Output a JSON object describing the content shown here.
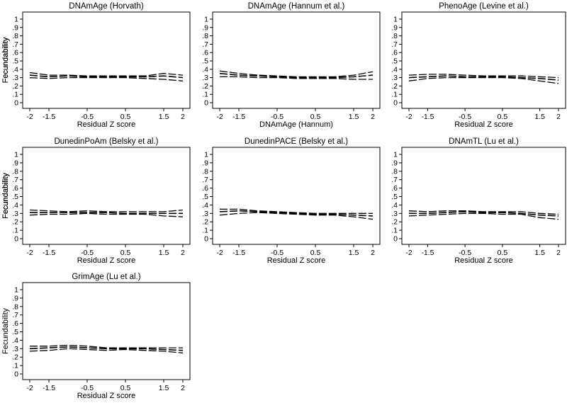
{
  "chart_data": [
    {
      "type": "line",
      "title": "DNAmAge (Horvath)",
      "xlabel": "Residual Z score",
      "ylabel": "Fecundability",
      "xlim": [
        -2,
        2
      ],
      "ylim": [
        0,
        1
      ],
      "xticks": [
        -2,
        -1.5,
        -0.5,
        0.5,
        1.5,
        2
      ],
      "xtick_labels": [
        "-2",
        "-1.5",
        "-0.5",
        "0.5",
        "1.5",
        "2"
      ],
      "yticks": [
        0,
        0.1,
        0.2,
        0.3,
        0.4,
        0.5,
        0.6,
        0.7,
        0.8,
        0.9,
        1
      ],
      "ytick_labels": [
        "0",
        ".1",
        ".2",
        ".3",
        ".4",
        ".5",
        ".6",
        ".7",
        ".8",
        ".9",
        "1"
      ],
      "x": [
        -2,
        -1.5,
        -1,
        -0.5,
        0,
        0.5,
        1,
        1.5,
        2
      ],
      "series": [
        {
          "values": [
            0.33,
            0.31,
            0.32,
            0.31,
            0.31,
            0.31,
            0.31,
            0.32,
            0.3
          ]
        },
        {
          "values": [
            0.36,
            0.33,
            0.33,
            0.32,
            0.32,
            0.32,
            0.32,
            0.35,
            0.33
          ]
        },
        {
          "values": [
            0.3,
            0.29,
            0.3,
            0.3,
            0.3,
            0.3,
            0.29,
            0.28,
            0.26
          ]
        }
      ]
    },
    {
      "type": "line",
      "title": "DNAmAge (Hannum et al.)",
      "xlabel": "DNAmAge (Hannum)",
      "ylabel": "Fecundability",
      "xlim": [
        -2,
        2
      ],
      "ylim": [
        0,
        1
      ],
      "xticks": [
        -2,
        -1.5,
        -0.5,
        0.5,
        1.5,
        2
      ],
      "xtick_labels": [
        "-2",
        "-1.5",
        "-0.5",
        "0.5",
        "1.5",
        "2"
      ],
      "yticks": [
        0,
        0.1,
        0.2,
        0.3,
        0.4,
        0.5,
        0.6,
        0.7,
        0.8,
        0.9,
        1
      ],
      "ytick_labels": [
        "0",
        ".1",
        ".2",
        ".3",
        ".4",
        ".5",
        ".6",
        ".7",
        ".8",
        ".9",
        "1"
      ],
      "x": [
        -2,
        -1.5,
        -1,
        -0.5,
        0,
        0.5,
        1,
        1.5,
        2
      ],
      "series": [
        {
          "values": [
            0.35,
            0.33,
            0.32,
            0.31,
            0.3,
            0.3,
            0.3,
            0.31,
            0.33
          ]
        },
        {
          "values": [
            0.38,
            0.35,
            0.33,
            0.32,
            0.31,
            0.31,
            0.31,
            0.33,
            0.37
          ]
        },
        {
          "values": [
            0.31,
            0.31,
            0.3,
            0.3,
            0.29,
            0.29,
            0.29,
            0.28,
            0.28
          ]
        }
      ]
    },
    {
      "type": "line",
      "title": "PhenoAge (Levine et al.)",
      "xlabel": "Residual Z score",
      "ylabel": "Fecundability",
      "xlim": [
        -2,
        2
      ],
      "ylim": [
        0,
        1
      ],
      "xticks": [
        -2,
        -1.5,
        -0.5,
        0.5,
        1.5,
        2
      ],
      "xtick_labels": [
        "-2",
        "-1.5",
        "-0.5",
        "0.5",
        "1.5",
        "2"
      ],
      "yticks": [
        0,
        0.1,
        0.2,
        0.3,
        0.4,
        0.5,
        0.6,
        0.7,
        0.8,
        0.9,
        1
      ],
      "ytick_labels": [
        "0",
        ".1",
        ".2",
        ".3",
        ".4",
        ".5",
        ".6",
        ".7",
        ".8",
        ".9",
        "1"
      ],
      "x": [
        -2,
        -1.5,
        -1,
        -0.5,
        0,
        0.5,
        1,
        1.5,
        2
      ],
      "series": [
        {
          "values": [
            0.3,
            0.31,
            0.32,
            0.31,
            0.31,
            0.31,
            0.3,
            0.29,
            0.27
          ]
        },
        {
          "values": [
            0.33,
            0.34,
            0.34,
            0.33,
            0.32,
            0.32,
            0.32,
            0.31,
            0.3
          ]
        },
        {
          "values": [
            0.26,
            0.29,
            0.3,
            0.3,
            0.3,
            0.3,
            0.29,
            0.26,
            0.23
          ]
        }
      ]
    },
    {
      "type": "line",
      "title": "DunedinPoAm (Belsky et al.)",
      "xlabel": "Residual Z score",
      "ylabel": "Fecundability",
      "xlim": [
        -2,
        2
      ],
      "ylim": [
        0,
        1
      ],
      "xticks": [
        -2,
        -1.5,
        -0.5,
        0.5,
        1.5,
        2
      ],
      "xtick_labels": [
        "-2",
        "-1.5",
        "-0.5",
        "0.5",
        "1.5",
        "2"
      ],
      "yticks": [
        0,
        0.1,
        0.2,
        0.3,
        0.4,
        0.5,
        0.6,
        0.7,
        0.8,
        0.9,
        1
      ],
      "ytick_labels": [
        "0",
        ".1",
        ".2",
        ".3",
        ".4",
        ".5",
        ".6",
        ".7",
        ".8",
        ".9",
        "1"
      ],
      "x": [
        -2,
        -1.5,
        -1,
        -0.5,
        0,
        0.5,
        1,
        1.5,
        2
      ],
      "series": [
        {
          "values": [
            0.31,
            0.31,
            0.31,
            0.31,
            0.31,
            0.3,
            0.3,
            0.3,
            0.3
          ]
        },
        {
          "values": [
            0.34,
            0.33,
            0.32,
            0.33,
            0.32,
            0.32,
            0.32,
            0.32,
            0.34
          ]
        },
        {
          "values": [
            0.28,
            0.29,
            0.29,
            0.3,
            0.29,
            0.29,
            0.29,
            0.27,
            0.26
          ]
        }
      ]
    },
    {
      "type": "line",
      "title": "DunedinPACE (Belsky et al.)",
      "xlabel": "Residual Z score",
      "ylabel": "Fecundability",
      "xlim": [
        -2,
        2
      ],
      "ylim": [
        0,
        1
      ],
      "xticks": [
        -2,
        -1.5,
        -0.5,
        0.5,
        1.5,
        2
      ],
      "xtick_labels": [
        "-2",
        "-1.5",
        "-0.5",
        "0.5",
        "1.5",
        "2"
      ],
      "yticks": [
        0,
        0.1,
        0.2,
        0.3,
        0.4,
        0.5,
        0.6,
        0.7,
        0.8,
        0.9,
        1
      ],
      "ytick_labels": [
        "0",
        ".1",
        ".2",
        ".3",
        ".4",
        ".5",
        ".6",
        ".7",
        ".8",
        ".9",
        "1"
      ],
      "x": [
        -2,
        -1.5,
        -1,
        -0.5,
        0,
        0.5,
        1,
        1.5,
        2
      ],
      "series": [
        {
          "values": [
            0.32,
            0.33,
            0.32,
            0.31,
            0.3,
            0.29,
            0.29,
            0.28,
            0.27
          ]
        },
        {
          "values": [
            0.35,
            0.35,
            0.33,
            0.32,
            0.31,
            0.3,
            0.3,
            0.3,
            0.3
          ]
        },
        {
          "values": [
            0.28,
            0.3,
            0.31,
            0.3,
            0.29,
            0.28,
            0.28,
            0.26,
            0.23
          ]
        }
      ]
    },
    {
      "type": "line",
      "title": "DNAmTL (Lu et al.)",
      "xlabel": "Residual Z score",
      "ylabel": "Fecundability",
      "xlim": [
        -2,
        2
      ],
      "ylim": [
        0,
        1
      ],
      "xticks": [
        -2,
        -1.5,
        -0.5,
        0.5,
        1.5,
        2
      ],
      "xtick_labels": [
        "-2",
        "-1.5",
        "-0.5",
        "0.5",
        "1.5",
        "2"
      ],
      "yticks": [
        0,
        0.1,
        0.2,
        0.3,
        0.4,
        0.5,
        0.6,
        0.7,
        0.8,
        0.9,
        1
      ],
      "ytick_labels": [
        "0",
        ".1",
        ".2",
        ".3",
        ".4",
        ".5",
        ".6",
        ".7",
        ".8",
        ".9",
        "1"
      ],
      "x": [
        -2,
        -1.5,
        -1,
        -0.5,
        0,
        0.5,
        1,
        1.5,
        2
      ],
      "series": [
        {
          "values": [
            0.3,
            0.3,
            0.31,
            0.32,
            0.31,
            0.31,
            0.3,
            0.28,
            0.27
          ]
        },
        {
          "values": [
            0.33,
            0.32,
            0.33,
            0.33,
            0.32,
            0.32,
            0.32,
            0.3,
            0.29
          ]
        },
        {
          "values": [
            0.27,
            0.28,
            0.29,
            0.3,
            0.3,
            0.29,
            0.29,
            0.25,
            0.23
          ]
        }
      ]
    },
    {
      "type": "line",
      "title": "GrimAge (Lu et al.)",
      "xlabel": "Residual Z score",
      "ylabel": "Fecundability",
      "xlim": [
        -2,
        2
      ],
      "ylim": [
        0,
        1
      ],
      "xticks": [
        -2,
        -1.5,
        -0.5,
        0.5,
        1.5,
        2
      ],
      "xtick_labels": [
        "-2",
        "-1.5",
        "-0.5",
        "0.5",
        "1.5",
        "2"
      ],
      "yticks": [
        0,
        0.1,
        0.2,
        0.3,
        0.4,
        0.5,
        0.6,
        0.7,
        0.8,
        0.9,
        1
      ],
      "ytick_labels": [
        "0",
        ".1",
        ".2",
        ".3",
        ".4",
        ".5",
        ".6",
        ".7",
        ".8",
        ".9",
        "1"
      ],
      "x": [
        -2,
        -1.5,
        -1,
        -0.5,
        0,
        0.5,
        1,
        1.5,
        2
      ],
      "series": [
        {
          "values": [
            0.3,
            0.31,
            0.32,
            0.31,
            0.3,
            0.3,
            0.3,
            0.29,
            0.28
          ]
        },
        {
          "values": [
            0.33,
            0.33,
            0.34,
            0.33,
            0.31,
            0.31,
            0.31,
            0.31,
            0.31
          ]
        },
        {
          "values": [
            0.27,
            0.28,
            0.3,
            0.29,
            0.28,
            0.29,
            0.28,
            0.27,
            0.25
          ]
        }
      ]
    }
  ]
}
